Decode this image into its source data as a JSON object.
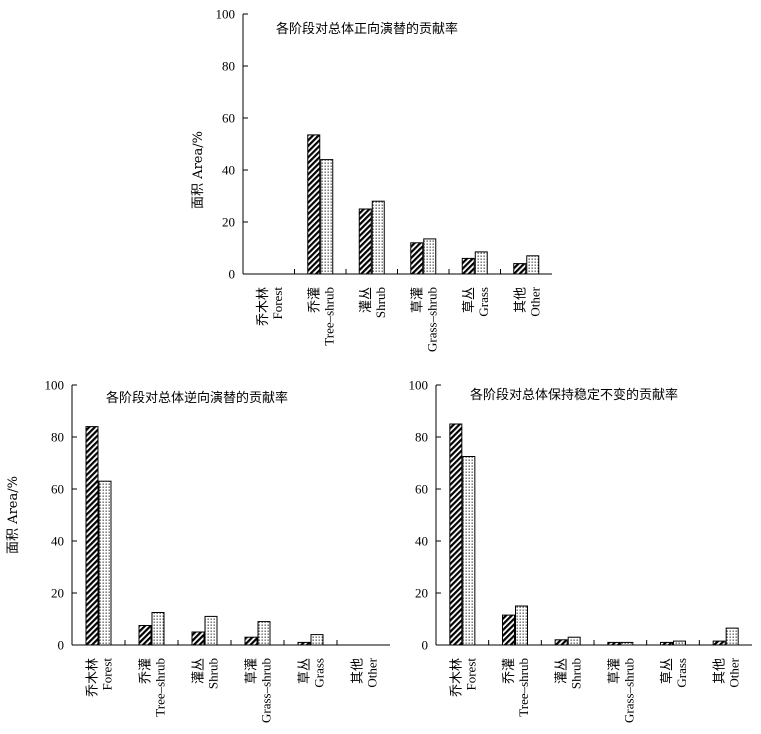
{
  "colors": {
    "ink": "#000000",
    "background": "#ffffff"
  },
  "chart_data": [
    {
      "type": "bar",
      "title": "各阶段对总体正向演替的贡献率",
      "ylabel": "面积 Area/%",
      "xlabel": "",
      "ylim": [
        0,
        100
      ],
      "yticks": [
        0,
        20,
        40,
        60,
        80,
        100
      ],
      "grid": false,
      "categories_zh": [
        "乔木林",
        "乔灌",
        "灌丛",
        "草灌",
        "草丛",
        "其他"
      ],
      "categories_en": [
        "Forest",
        "Tree–shrub",
        "Shrub",
        "Grass–shrub",
        "Grass",
        "Other"
      ],
      "series": [
        {
          "pattern": "hatch",
          "values": [
            0,
            53.5,
            25,
            12,
            6,
            4
          ]
        },
        {
          "pattern": "dots",
          "values": [
            0,
            44,
            28,
            13.5,
            8.5,
            7
          ]
        }
      ]
    },
    {
      "type": "bar",
      "title": "各阶段对总体逆向演替的贡献率",
      "ylabel": "面积 Area/%",
      "xlabel": "",
      "ylim": [
        0,
        100
      ],
      "yticks": [
        0,
        20,
        40,
        60,
        80,
        100
      ],
      "grid": false,
      "categories_zh": [
        "乔木林",
        "乔灌",
        "灌丛",
        "草灌",
        "草丛",
        "其他"
      ],
      "categories_en": [
        "Forest",
        "Tree–shrub",
        "Shrub",
        "Grass–shrub",
        "Grass",
        "Other"
      ],
      "series": [
        {
          "pattern": "hatch",
          "values": [
            84,
            7.5,
            5,
            3,
            1,
            0
          ]
        },
        {
          "pattern": "dots",
          "values": [
            63,
            12.5,
            11,
            9,
            4,
            0
          ]
        }
      ]
    },
    {
      "type": "bar",
      "title": "各阶段对总体保持稳定不变的贡献率",
      "ylabel": "",
      "xlabel": "",
      "ylim": [
        0,
        100
      ],
      "yticks": [
        0,
        20,
        40,
        60,
        80,
        100
      ],
      "grid": false,
      "categories_zh": [
        "乔木林",
        "乔灌",
        "灌丛",
        "草灌",
        "草丛",
        "其他"
      ],
      "categories_en": [
        "Forest",
        "Tree–shrub",
        "Shrub",
        "Grass–shrub",
        "Grass",
        "Other"
      ],
      "series": [
        {
          "pattern": "hatch",
          "values": [
            85,
            11.5,
            2,
            1,
            1,
            1.5
          ]
        },
        {
          "pattern": "dots",
          "values": [
            72.5,
            15,
            3,
            1,
            1.5,
            6.5
          ]
        }
      ]
    }
  ]
}
